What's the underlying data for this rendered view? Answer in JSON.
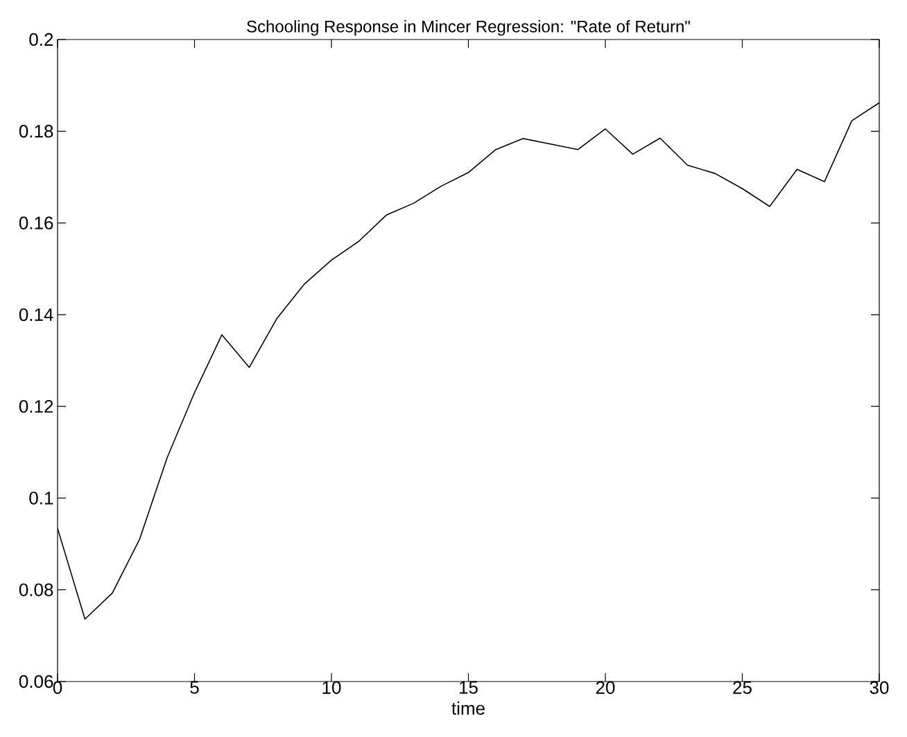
{
  "chart_data": {
    "type": "line",
    "title": "Schooling Response in Mincer Regression: \"Rate of Return\"",
    "xlabel": "time",
    "x": [
      0,
      1,
      2,
      3,
      4,
      5,
      6,
      7,
      8,
      9,
      10,
      11,
      12,
      13,
      14,
      15,
      16,
      17,
      18,
      19,
      20,
      21,
      22,
      23,
      24,
      25,
      26,
      27,
      28,
      29,
      30
    ],
    "series": [
      {
        "color": "#000000",
        "values": [
          0.0934,
          0.0736,
          0.0793,
          0.0911,
          0.1088,
          0.123,
          0.1356,
          0.1285,
          0.1391,
          0.1466,
          0.1519,
          0.156,
          0.1617,
          0.1643,
          0.168,
          0.171,
          0.176,
          0.1784,
          0.1772,
          0.176,
          0.1805,
          0.175,
          0.1785,
          0.1726,
          0.1708,
          0.1675,
          0.1636,
          0.1717,
          0.169,
          0.1823,
          0.1862
        ]
      }
    ],
    "xlim": [
      0,
      30
    ],
    "ylim": [
      0.06,
      0.2
    ],
    "xticks": [
      0,
      5,
      10,
      15,
      20,
      25,
      30
    ],
    "yticks": [
      {
        "value": 0.06,
        "label": "0.06"
      },
      {
        "value": 0.08,
        "label": "0.08"
      },
      {
        "value": 0.1,
        "label": "0.1"
      },
      {
        "value": 0.12,
        "label": "0.12"
      },
      {
        "value": 0.14,
        "label": "0.14"
      },
      {
        "value": 0.16,
        "label": "0.16"
      },
      {
        "value": 0.18,
        "label": "0.18"
      },
      {
        "value": 0.2,
        "label": "0.2"
      }
    ]
  }
}
